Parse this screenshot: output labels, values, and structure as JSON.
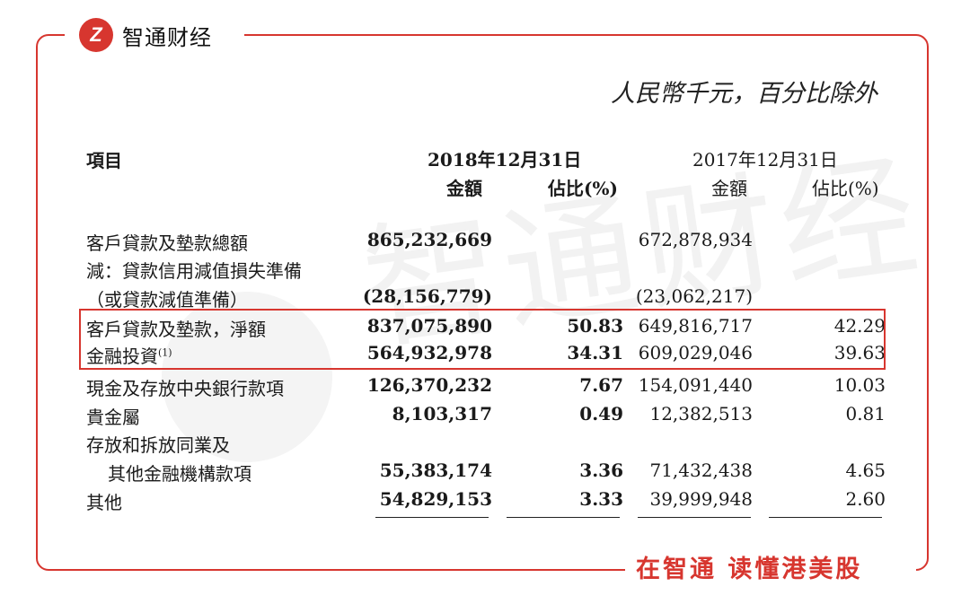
{
  "brand": {
    "logo_glyph": "Z",
    "name": "智通财经",
    "slogan": "在智通 读懂港美股",
    "watermark": "智通财经",
    "accent": "#d7362f"
  },
  "unit_note": "人民幣千元，百分比除外",
  "header": {
    "item": "項目",
    "period_2018": "2018年12月31日",
    "period_2017": "2017年12月31日",
    "amount": "金額",
    "ratio": "佔比(%)"
  },
  "rows": [
    {
      "label": "客戶貸款及墊款總額",
      "a": "865,232,669",
      "b": "",
      "c": "672,878,934",
      "d": ""
    },
    {
      "label": "減：貸款信用減值損失準備",
      "a": "",
      "b": "",
      "c": "",
      "d": ""
    },
    {
      "label": "（或貸款減值準備）",
      "a": "(28,156,779)",
      "b": "",
      "c": "(23,062,217)",
      "d": ""
    },
    {
      "label": "客戶貸款及墊款，淨額",
      "a": "837,075,890",
      "b": "50.83",
      "c": "649,816,717",
      "d": "42.29"
    },
    {
      "label": "金融投資",
      "sup": "(1)",
      "a": "564,932,978",
      "b": "34.31",
      "c": "609,029,046",
      "d": "39.63"
    },
    {
      "label": "現金及存放中央銀行款項",
      "a": "126,370,232",
      "b": "7.67",
      "c": "154,091,440",
      "d": "10.03"
    },
    {
      "label": "貴金屬",
      "a": "8,103,317",
      "b": "0.49",
      "c": "12,382,513",
      "d": "0.81"
    },
    {
      "label": "存放和拆放同業及",
      "a": "",
      "b": "",
      "c": "",
      "d": ""
    },
    {
      "label": "其他金融機構款項",
      "a": "55,383,174",
      "b": "3.36",
      "c": "71,432,438",
      "d": "4.65"
    },
    {
      "label": "其他",
      "a": "54,829,153",
      "b": "3.33",
      "c": "39,999,948",
      "d": "2.60"
    }
  ]
}
